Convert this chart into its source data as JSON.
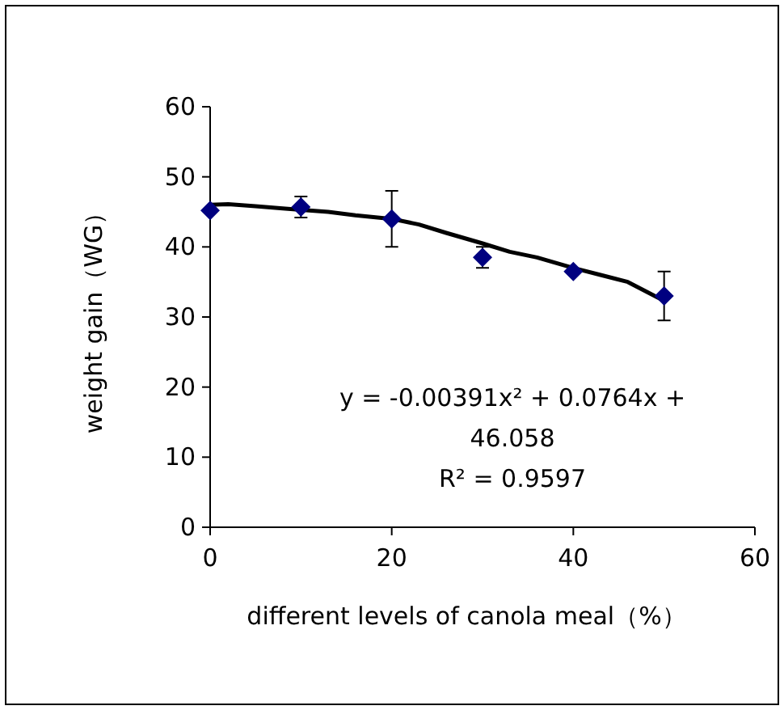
{
  "chart_data": {
    "type": "scatter",
    "xlabel": "different levels of canola meal（%）",
    "ylabel": "weight gain（WG）",
    "xlim": [
      0,
      60
    ],
    "xticks": [
      0,
      20,
      40,
      60
    ],
    "ylim": [
      0,
      60
    ],
    "yticks": [
      0,
      10,
      20,
      30,
      40,
      50,
      60
    ],
    "grid": false,
    "marker": "diamond",
    "series": [
      {
        "type": "scatter",
        "color": "#000080",
        "x": [
          0,
          10,
          20,
          30,
          40,
          50
        ],
        "values": [
          45.2,
          45.7,
          44,
          38.5,
          36.5,
          33
        ],
        "errors": [
          null,
          1.5,
          4,
          1.5,
          null,
          3.5
        ]
      },
      {
        "type": "line",
        "color": "#000000",
        "marker": "none",
        "line_style": "solid",
        "x": [
          0,
          2,
          5,
          8,
          10,
          13,
          16,
          20,
          23,
          26,
          30,
          33,
          36,
          40,
          43,
          46,
          50
        ],
        "values": [
          46,
          46.1,
          45.8,
          45.5,
          45.3,
          45,
          44.5,
          44,
          43.2,
          42,
          40.5,
          39.3,
          38.5,
          37,
          36,
          35,
          32.3
        ]
      }
    ],
    "annotations": [
      "y = -0.00391x² + 0.0764x +",
      "46.058",
      "R² = 0.9597"
    ]
  }
}
